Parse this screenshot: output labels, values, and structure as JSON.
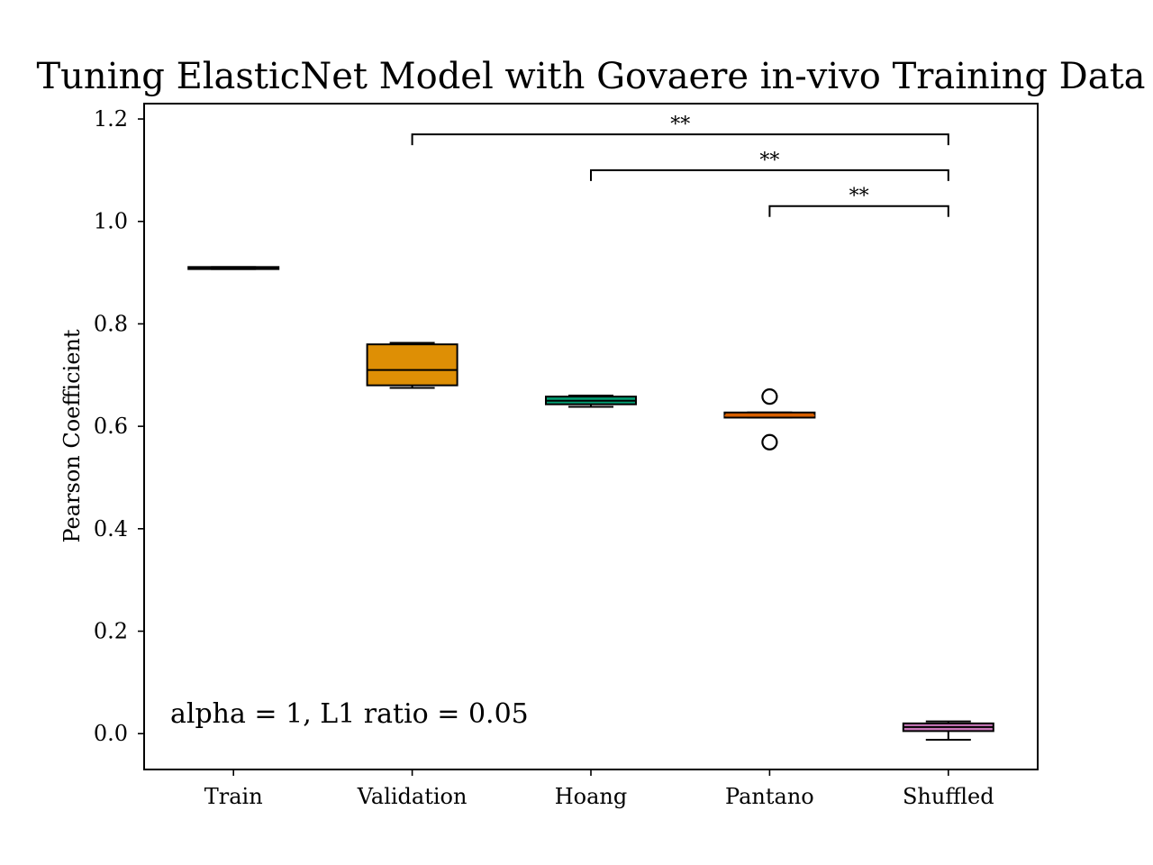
{
  "chart_data": {
    "type": "box",
    "title": "Tuning ElasticNet Model with Govaere in-vivo Training Data",
    "xlabel": "",
    "ylabel": "Pearson Coefficient",
    "ylim": [
      -0.07,
      1.23
    ],
    "yticks": [
      0.0,
      0.2,
      0.4,
      0.6,
      0.8,
      1.0,
      1.2
    ],
    "ytick_labels": [
      "0.0",
      "0.2",
      "0.4",
      "0.6",
      "0.8",
      "1.0",
      "1.2"
    ],
    "categories": [
      "Train",
      "Validation",
      "Hoang",
      "Pantano",
      "Shuffled"
    ],
    "grid": false,
    "annotation": "alpha = 1, L1 ratio = 0.05",
    "boxes": [
      {
        "name": "Train",
        "whisker_low": 0.907,
        "q1": 0.907,
        "median": 0.909,
        "q3": 0.911,
        "whisker_high": 0.911,
        "outliers": [],
        "color": "#1f77b4"
      },
      {
        "name": "Validation",
        "whisker_low": 0.675,
        "q1": 0.68,
        "median": 0.71,
        "q3": 0.76,
        "whisker_high": 0.763,
        "outliers": [],
        "color": "#de8f05"
      },
      {
        "name": "Hoang",
        "whisker_low": 0.638,
        "q1": 0.643,
        "median": 0.65,
        "q3": 0.658,
        "whisker_high": 0.66,
        "outliers": [],
        "color": "#029e73"
      },
      {
        "name": "Pantano",
        "whisker_low": 0.617,
        "q1": 0.617,
        "median": 0.621,
        "q3": 0.627,
        "whisker_high": 0.627,
        "outliers": [
          0.658,
          0.569
        ],
        "color": "#d55e00"
      },
      {
        "name": "Shuffled",
        "whisker_low": -0.012,
        "q1": 0.005,
        "median": 0.013,
        "q3": 0.02,
        "whisker_high": 0.024,
        "outliers": [],
        "color": "#cc78bc"
      }
    ],
    "significance": [
      {
        "from": "Validation",
        "to": "Shuffled",
        "label": "**",
        "y": 1.17
      },
      {
        "from": "Hoang",
        "to": "Shuffled",
        "label": "**",
        "y": 1.1
      },
      {
        "from": "Pantano",
        "to": "Shuffled",
        "label": "**",
        "y": 1.03
      }
    ]
  }
}
